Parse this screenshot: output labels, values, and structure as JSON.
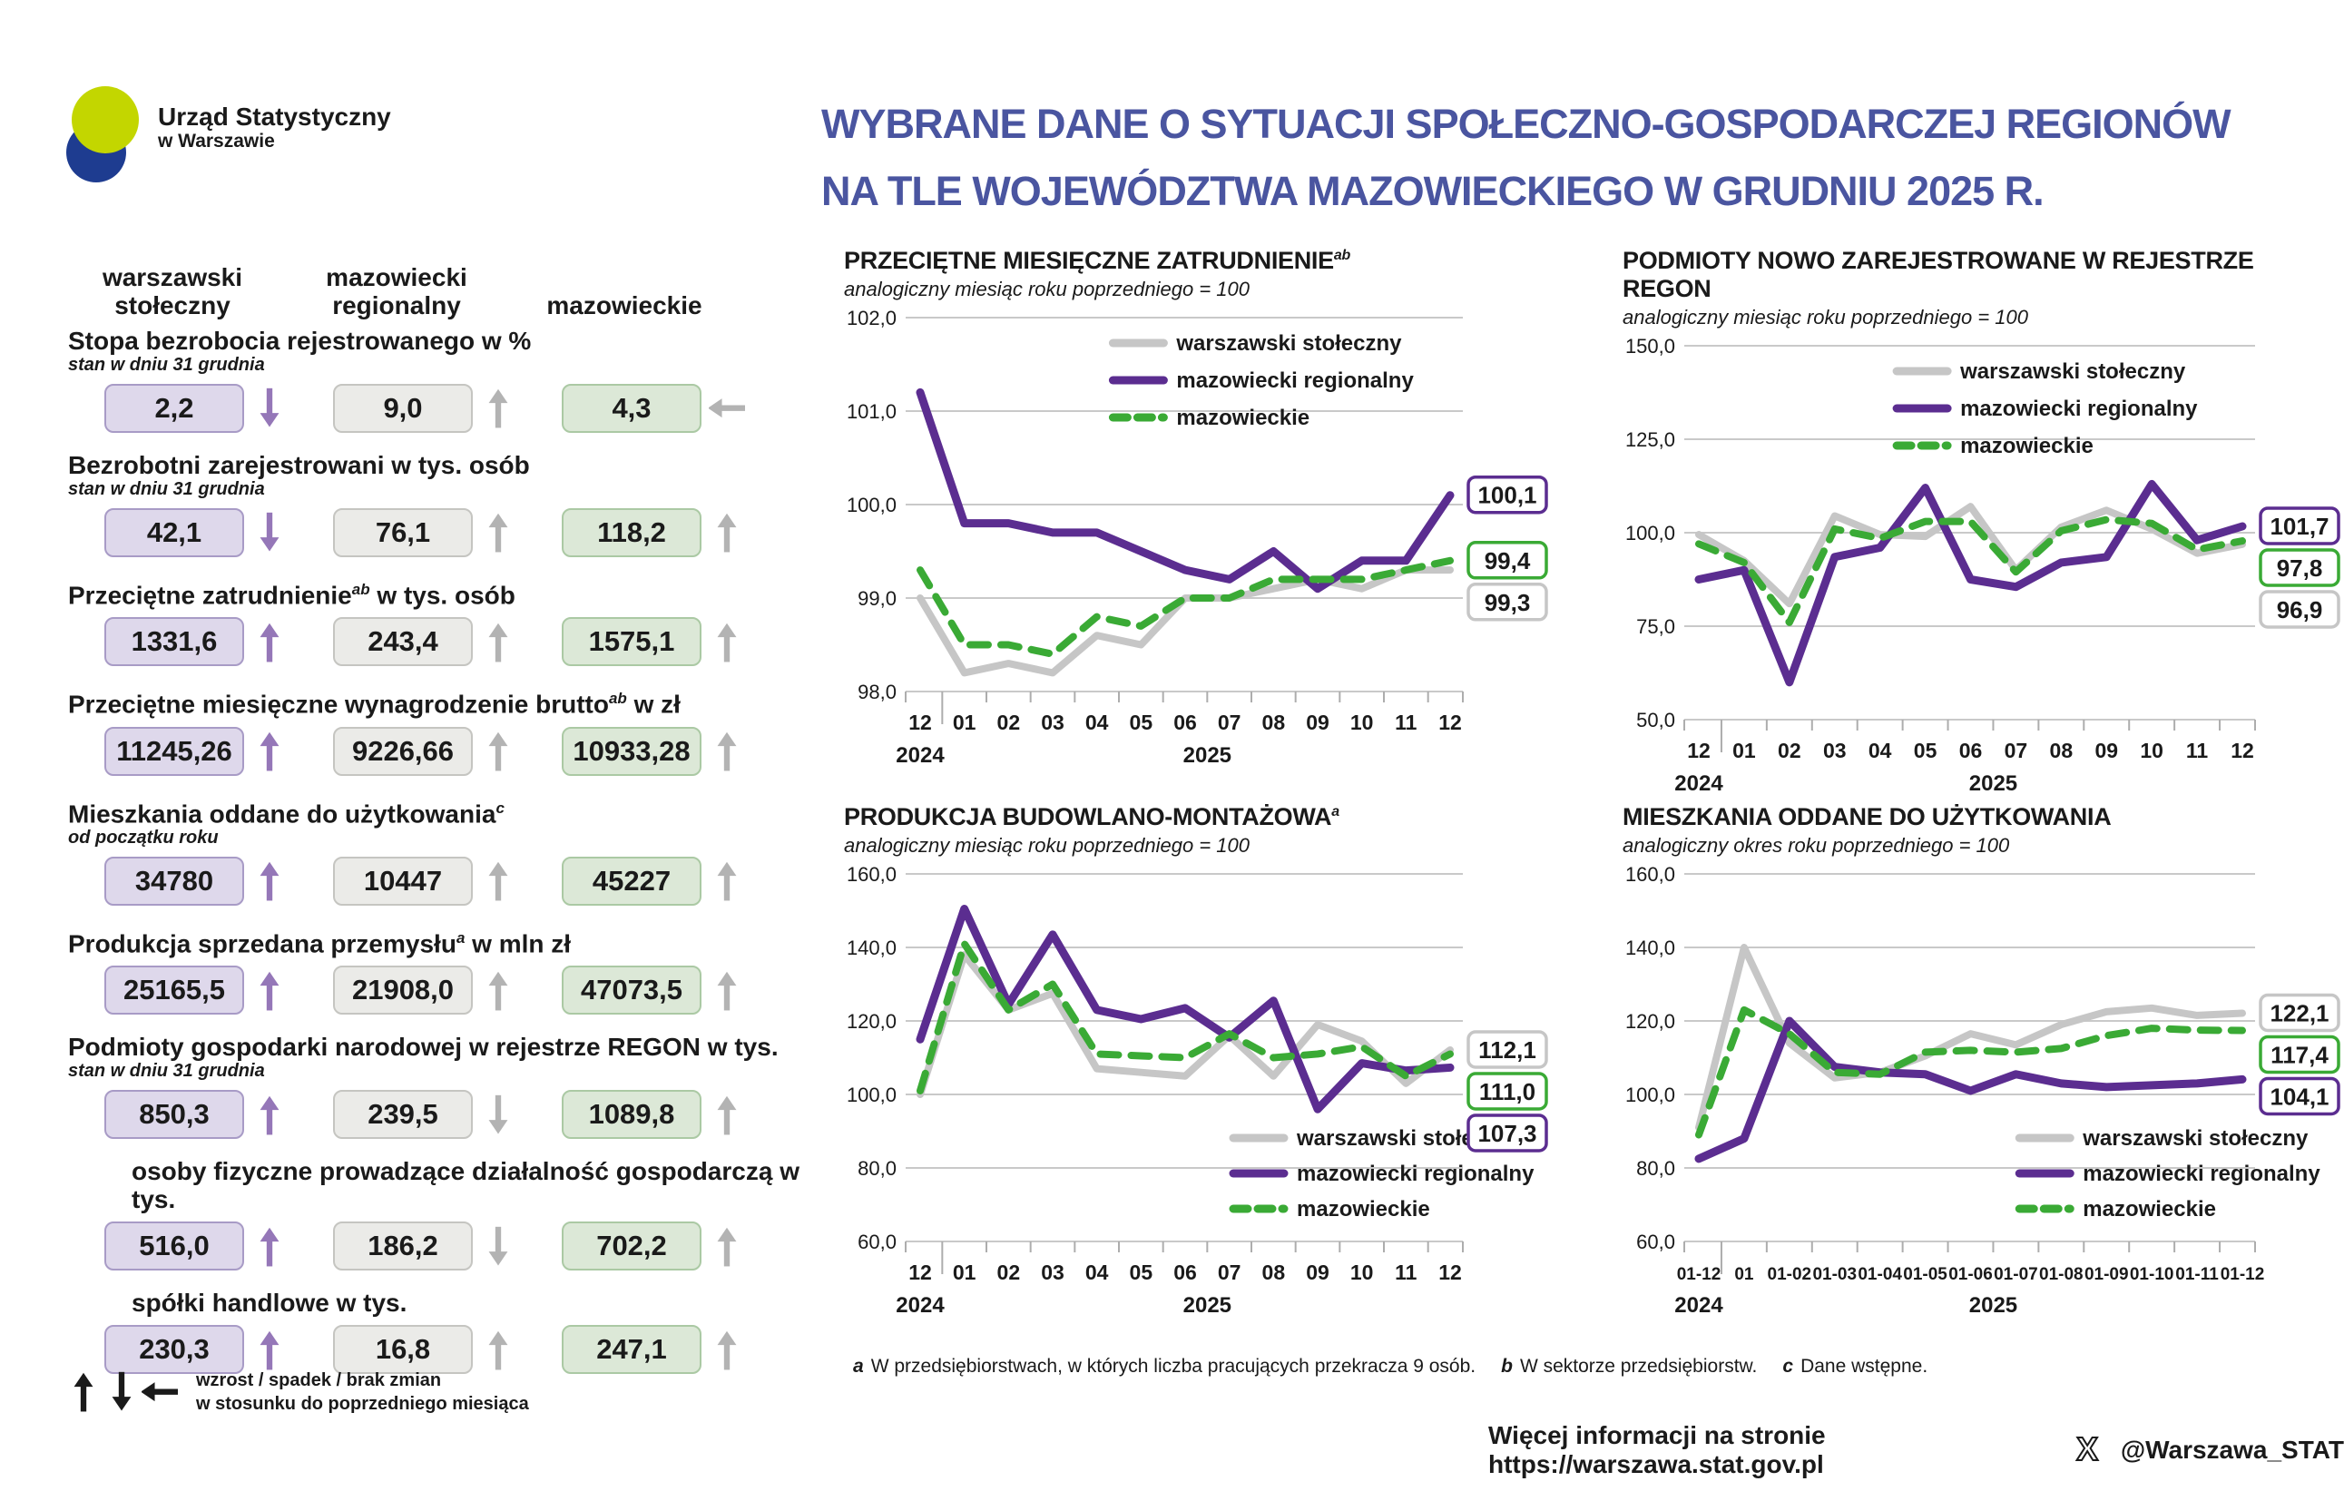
{
  "logo": {
    "org": "Urząd Statystyczny",
    "city": "w Warszawie"
  },
  "title": {
    "line1": "WYBRANE DANE O SYTUACJI SPOŁECZNO-GOSPODARCZEJ REGIONÓW",
    "line2": "NA TLE WOJEWÓDZTWA MAZOWIECKIEGO W GRUDNIU 2025 R."
  },
  "regions": [
    "warszawski stołeczny",
    "mazowiecki regionalny",
    "mazowieckie"
  ],
  "indicators": [
    {
      "label": "Stopa bezrobocia rejestrowanego w %",
      "sup": "",
      "label2": "",
      "sublabel": "stan w dniu 31 grudnia",
      "indent": false,
      "cells": [
        {
          "value": "2,2",
          "arrow": "down"
        },
        {
          "value": "9,0",
          "arrow": "up"
        },
        {
          "value": "4,3",
          "arrow": "left"
        }
      ]
    },
    {
      "label": "Bezrobotni zarejestrowani w tys. osób",
      "sup": "",
      "label2": "",
      "sublabel": "stan w dniu 31 grudnia",
      "indent": false,
      "cells": [
        {
          "value": "42,1",
          "arrow": "down"
        },
        {
          "value": "76,1",
          "arrow": "up"
        },
        {
          "value": "118,2",
          "arrow": "up"
        }
      ]
    },
    {
      "label": "Przeciętne zatrudnienie",
      "sup": "ab",
      "label2": " w tys. osób",
      "sublabel": "",
      "indent": false,
      "cells": [
        {
          "value": "1331,6",
          "arrow": "up"
        },
        {
          "value": "243,4",
          "arrow": "up"
        },
        {
          "value": "1575,1",
          "arrow": "up"
        }
      ]
    },
    {
      "label": "Przeciętne miesięczne wynagrodzenie brutto",
      "sup": "ab",
      "label2": " w zł",
      "sublabel": "",
      "indent": false,
      "cells": [
        {
          "value": "11245,26",
          "arrow": "up"
        },
        {
          "value": "9226,66",
          "arrow": "up"
        },
        {
          "value": "10933,28",
          "arrow": "up"
        }
      ]
    },
    {
      "label": "Mieszkania oddane do użytkowania",
      "sup": "c",
      "label2": "",
      "sublabel": "od początku roku",
      "indent": false,
      "cells": [
        {
          "value": "34780",
          "arrow": "up"
        },
        {
          "value": "10447",
          "arrow": "up"
        },
        {
          "value": "45227",
          "arrow": "up"
        }
      ]
    },
    {
      "label": "Produkcja sprzedana przemysłu",
      "sup": "a",
      "label2": " w mln zł",
      "sublabel": "",
      "indent": false,
      "cells": [
        {
          "value": "25165,5",
          "arrow": "up"
        },
        {
          "value": "21908,0",
          "arrow": "up"
        },
        {
          "value": "47073,5",
          "arrow": "up"
        }
      ]
    },
    {
      "label": "Podmioty gospodarki narodowej w rejestrze REGON w tys.",
      "sup": "",
      "label2": "",
      "sublabel": "stan w dniu 31 grudnia",
      "indent": false,
      "cells": [
        {
          "value": "850,3",
          "arrow": "up"
        },
        {
          "value": "239,5",
          "arrow": "down"
        },
        {
          "value": "1089,8",
          "arrow": "up"
        }
      ]
    },
    {
      "label": "osoby fizyczne prowadzące działalność gospodarczą w tys.",
      "sup": "",
      "label2": "",
      "sublabel": "",
      "indent": true,
      "cells": [
        {
          "value": "516,0",
          "arrow": "up"
        },
        {
          "value": "186,2",
          "arrow": "down"
        },
        {
          "value": "702,2",
          "arrow": "up"
        }
      ]
    },
    {
      "label": "spółki handlowe w tys.",
      "sup": "",
      "label2": "",
      "sublabel": "",
      "indent": true,
      "cells": [
        {
          "value": "230,3",
          "arrow": "up"
        },
        {
          "value": "16,8",
          "arrow": "up"
        },
        {
          "value": "247,1",
          "arrow": "up"
        }
      ]
    }
  ],
  "arrows_note": {
    "line1": "wzrost / spadek / brak zmian",
    "line2": "w stosunku do poprzedniego miesiąca"
  },
  "footnotes": [
    {
      "marker": "a",
      "text": "W przedsiębiorstwach, w których liczba pracujących przekracza 9 osób."
    },
    {
      "marker": "b",
      "text": "W sektorze przedsiębiorstw."
    },
    {
      "marker": "c",
      "text": "Dane wstępne."
    }
  ],
  "footer": {
    "info": "Więcej informacji na stronie https://warszawa.stat.gov.pl",
    "handle": "@Warszawa_STAT"
  },
  "palette": {
    "purple": "#5B2D90",
    "green": "#3AAA35",
    "gray": "#C6C6C6",
    "title_blue": "#4A55A0",
    "grid": "#C9C9C9",
    "tick": "#ADADAD",
    "text": "#1A1A1A",
    "box_purple_bg": "#DED8EB",
    "box_purple_border": "#A89BC6",
    "box_gray_bg": "#EBEBE8",
    "box_gray_border": "#C5C5C1",
    "box_green_bg": "#DCE8D7",
    "box_green_border": "#ABC9A4",
    "arrow_purple": "#9577B8",
    "arrow_gray": "#B3B3B3",
    "logo_yellow": "#C3D600",
    "logo_navy": "#1E3C90"
  },
  "chart_data": [
    {
      "type": "line",
      "title": "PRZECIĘTNE MIESIĘCZNE ZATRUDNIENIE",
      "title_sup": "ab",
      "subtitle": "analogiczny miesiąc roku poprzedniego = 100",
      "categories": [
        "12",
        "01",
        "02",
        "03",
        "04",
        "05",
        "06",
        "07",
        "08",
        "09",
        "10",
        "11",
        "12"
      ],
      "year_labels": [
        "2024",
        "2025"
      ],
      "ylim": [
        98,
        102
      ],
      "yticks": [
        98,
        99,
        100,
        101,
        102
      ],
      "grid": true,
      "legend_pos": "top-right",
      "series": [
        {
          "name": "warszawski stołeczny",
          "color_key": "gray",
          "dash": false,
          "values": [
            99.0,
            98.2,
            98.3,
            98.2,
            98.6,
            98.5,
            99.0,
            99.0,
            99.1,
            99.2,
            99.1,
            99.3,
            99.3
          ]
        },
        {
          "name": "mazowiecki regionalny",
          "color_key": "purple",
          "dash": false,
          "values": [
            101.2,
            99.8,
            99.8,
            99.7,
            99.7,
            99.5,
            99.3,
            99.2,
            99.5,
            99.1,
            99.4,
            99.4,
            100.1
          ]
        },
        {
          "name": "mazowieckie",
          "color_key": "green",
          "dash": true,
          "values": [
            99.3,
            98.5,
            98.5,
            98.4,
            98.8,
            98.7,
            99.0,
            99.0,
            99.2,
            99.2,
            99.2,
            99.3,
            99.4
          ]
        }
      ]
    },
    {
      "type": "line",
      "title": "PODMIOTY NOWO ZAREJESTROWANE W REJESTRZE REGON",
      "title_sup": "",
      "subtitle": "analogiczny miesiąc roku poprzedniego = 100",
      "categories": [
        "12",
        "01",
        "02",
        "03",
        "04",
        "05",
        "06",
        "07",
        "08",
        "09",
        "10",
        "11",
        "12"
      ],
      "year_labels": [
        "2024",
        "2025"
      ],
      "ylim": [
        50,
        150
      ],
      "yticks": [
        50,
        75,
        100,
        125,
        150
      ],
      "grid": true,
      "legend_pos": "top-right",
      "series": [
        {
          "name": "warszawski stołeczny",
          "color_key": "gray",
          "dash": false,
          "values": [
            99.5,
            92.5,
            81,
            104.5,
            99.5,
            99,
            107,
            90,
            101.5,
            106,
            101,
            94.5,
            96.9
          ]
        },
        {
          "name": "mazowiecki regionalny",
          "color_key": "purple",
          "dash": false,
          "values": [
            87.5,
            90,
            60,
            93.5,
            96,
            112,
            87.5,
            85.5,
            92,
            93.5,
            113,
            98,
            101.7
          ]
        },
        {
          "name": "mazowieckie",
          "color_key": "green",
          "dash": true,
          "values": [
            97,
            92,
            76,
            101,
            98.5,
            103,
            103,
            89.5,
            100.5,
            103.5,
            102.5,
            95.5,
            97.8
          ]
        }
      ]
    },
    {
      "type": "line",
      "title": "PRODUKCJA BUDOWLANO-MONTAŻOWA",
      "title_sup": "a",
      "subtitle": "analogiczny miesiąc roku poprzedniego = 100",
      "categories": [
        "12",
        "01",
        "02",
        "03",
        "04",
        "05",
        "06",
        "07",
        "08",
        "09",
        "10",
        "11",
        "12"
      ],
      "year_labels": [
        "2024",
        "2025"
      ],
      "ylim": [
        60,
        160
      ],
      "yticks": [
        60,
        80,
        100,
        120,
        140,
        160
      ],
      "grid": true,
      "legend_pos": "bottom-right",
      "series": [
        {
          "name": "warszawski stołeczny",
          "color_key": "gray",
          "dash": false,
          "values": [
            100,
            138,
            123,
            127.5,
            107,
            106,
            105,
            116,
            105,
            119,
            114.5,
            103,
            112.1
          ]
        },
        {
          "name": "mazowiecki regionalny",
          "color_key": "purple",
          "dash": false,
          "values": [
            115,
            150.5,
            124.5,
            143.5,
            123,
            120.5,
            123.5,
            115.5,
            125.5,
            96,
            108.5,
            106.5,
            107.3
          ]
        },
        {
          "name": "mazowieckie",
          "color_key": "green",
          "dash": true,
          "values": [
            101,
            141,
            123,
            130,
            111,
            110.5,
            110,
            116.5,
            110,
            111,
            113,
            105,
            111.0
          ]
        }
      ]
    },
    {
      "type": "line",
      "title": "MIESZKANIA ODDANE DO UŻYTKOWANIA",
      "title_sup": "",
      "subtitle": "analogiczny okres roku poprzedniego = 100",
      "categories": [
        "01-12",
        "01",
        "01-02",
        "01-03",
        "01-04",
        "01-05",
        "01-06",
        "01-07",
        "01-08",
        "01-09",
        "01-10",
        "01-11",
        "01-12"
      ],
      "year_labels": [
        "2024",
        "2025"
      ],
      "ylim": [
        60,
        160
      ],
      "yticks": [
        60,
        80,
        100,
        120,
        140,
        160
      ],
      "grid": true,
      "legend_pos": "bottom-right",
      "series": [
        {
          "name": "warszawski stołeczny",
          "color_key": "gray",
          "dash": false,
          "values": [
            91,
            140,
            114,
            104.5,
            106,
            110.5,
            116.5,
            113.5,
            119,
            122.5,
            123.5,
            121.5,
            122.1
          ]
        },
        {
          "name": "mazowiecki regionalny",
          "color_key": "purple",
          "dash": false,
          "values": [
            82.5,
            88,
            120,
            107.5,
            106,
            105.5,
            101,
            105.5,
            103,
            102,
            102.5,
            103,
            104.1
          ]
        },
        {
          "name": "mazowieckie",
          "color_key": "green",
          "dash": true,
          "values": [
            89,
            123,
            116.5,
            106,
            105.5,
            111.5,
            112,
            111.5,
            112.5,
            116,
            118,
            117.5,
            117.4
          ]
        }
      ]
    }
  ]
}
